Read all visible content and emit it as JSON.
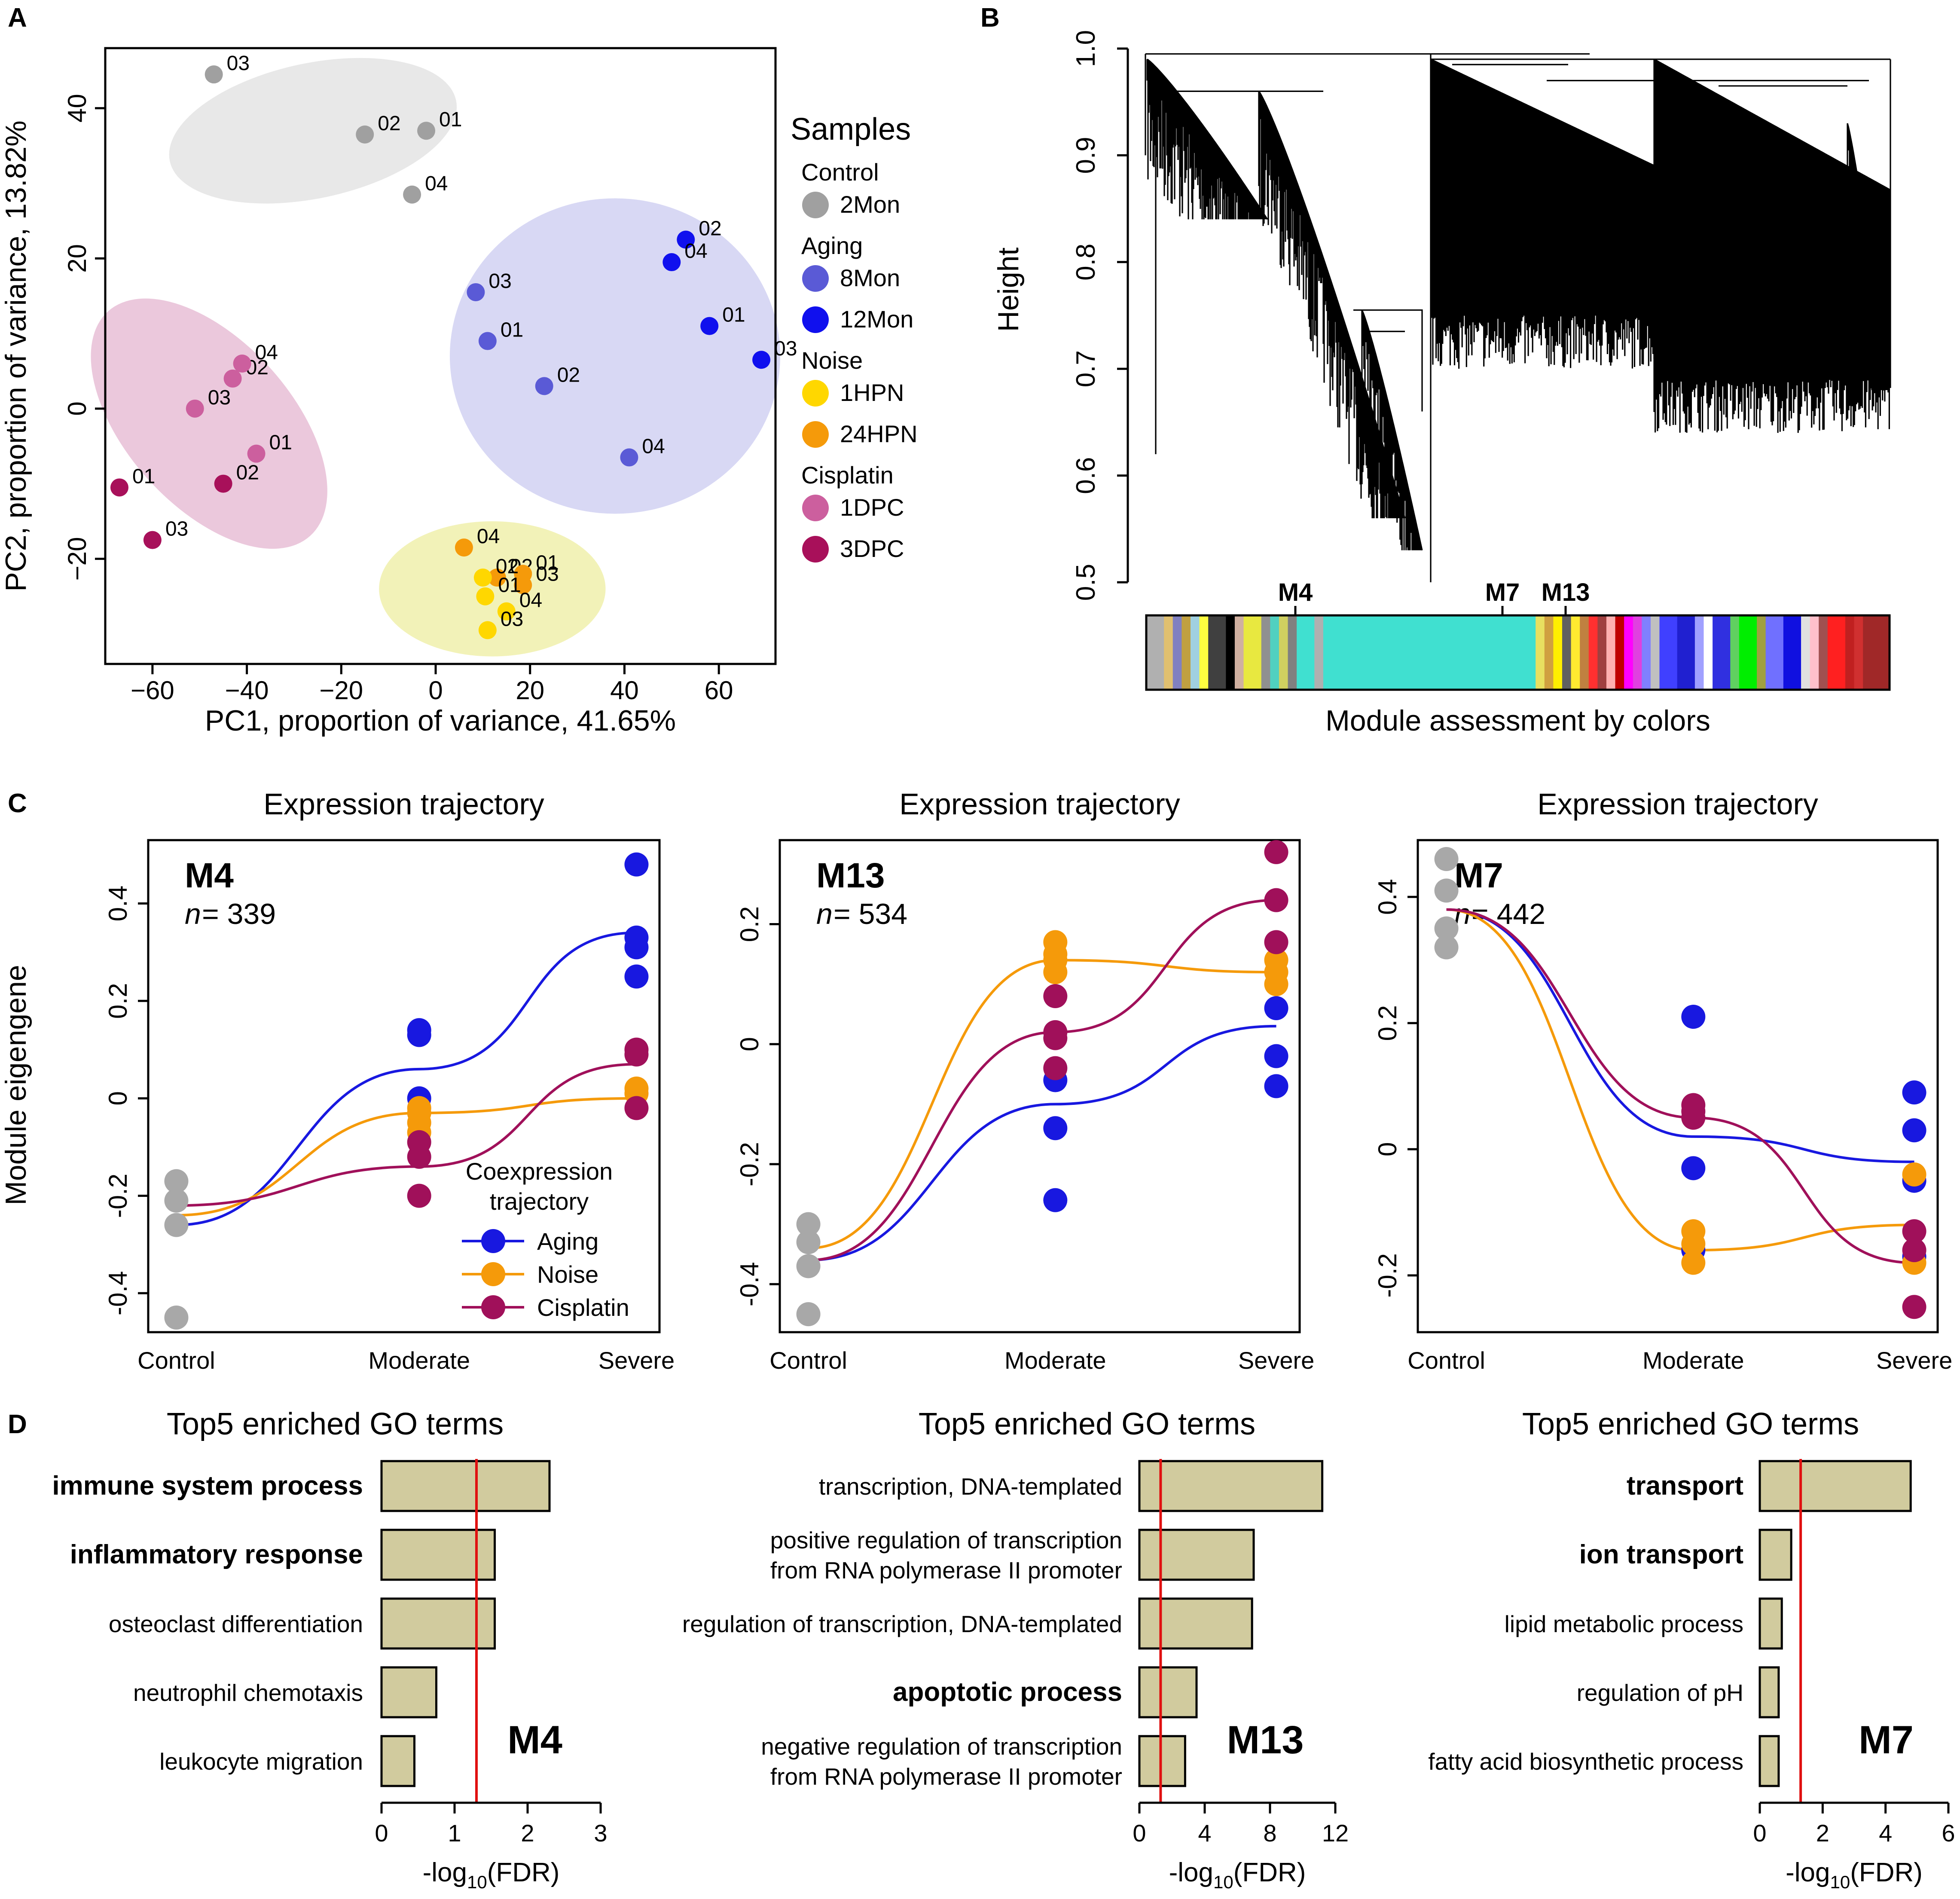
{
  "chart_data": [
    {
      "panel": "A",
      "type": "scatter",
      "xlabel": "PC1, proportion of variance, 41.65%",
      "ylabel": "PC2, proportion of variance, 13.82%",
      "xlim": [
        -70,
        72
      ],
      "ylim": [
        -34,
        48
      ],
      "xticks": [
        -60,
        -40,
        -20,
        0,
        20,
        40,
        60
      ],
      "yticks": [
        -20,
        0,
        20,
        40
      ],
      "legend_title": "Samples",
      "legend": [
        {
          "group": "Control",
          "label": "2Mon",
          "color": "#a0a0a0"
        },
        {
          "group": "Aging",
          "label": "8Mon",
          "color": "#5a5ad6"
        },
        {
          "label": "12Mon",
          "color": "#1010ee"
        },
        {
          "group": "Noise",
          "label": "1HPN",
          "color": "#ffd700"
        },
        {
          "label": "24HPN",
          "color": "#f59a0a"
        },
        {
          "group": "Cisplatin",
          "label": "1DPC",
          "color": "#cc5f9e"
        },
        {
          "label": "3DPC",
          "color": "#a8105a"
        }
      ],
      "ellipses": [
        {
          "name": "control",
          "cx": -26,
          "cy": 37,
          "rx": 31,
          "ry": 9,
          "angle": -12,
          "fill": "#e8e8e8"
        },
        {
          "name": "aging",
          "cx": 38,
          "cy": 7,
          "rx": 35,
          "ry": 21,
          "angle": 0,
          "fill": "#d8d8f4"
        },
        {
          "name": "cisplatin",
          "cx": -48,
          "cy": -2,
          "rx": 32,
          "ry": 11,
          "angle": 48,
          "fill": "#ebc8dc"
        },
        {
          "name": "noise",
          "cx": 12,
          "cy": -24,
          "rx": 24,
          "ry": 9,
          "angle": 0,
          "fill": "#f2f2b8"
        }
      ],
      "points": [
        {
          "x": -47,
          "y": 44.5,
          "label": "03",
          "group": "2Mon"
        },
        {
          "x": -15,
          "y": 36.5,
          "label": "02",
          "group": "2Mon"
        },
        {
          "x": -2,
          "y": 37,
          "label": "01",
          "group": "2Mon"
        },
        {
          "x": -5,
          "y": 28.5,
          "label": "04",
          "group": "2Mon"
        },
        {
          "x": 8.5,
          "y": 15.5,
          "label": "03",
          "group": "8Mon"
        },
        {
          "x": 11,
          "y": 9,
          "label": "01",
          "group": "8Mon"
        },
        {
          "x": 23,
          "y": 3,
          "label": "02",
          "group": "8Mon"
        },
        {
          "x": 41,
          "y": -6.5,
          "label": "04",
          "group": "8Mon"
        },
        {
          "x": 53,
          "y": 22.5,
          "label": "02",
          "group": "12Mon"
        },
        {
          "x": 50,
          "y": 19.5,
          "label": "04",
          "group": "12Mon"
        },
        {
          "x": 58,
          "y": 11,
          "label": "01",
          "group": "12Mon"
        },
        {
          "x": 69,
          "y": 6.5,
          "label": "03",
          "group": "12Mon"
        },
        {
          "x": -51,
          "y": 0,
          "label": "03",
          "group": "1DPC"
        },
        {
          "x": -43,
          "y": 4,
          "label": "02",
          "group": "1DPC"
        },
        {
          "x": -41,
          "y": 6,
          "label": "04",
          "group": "1DPC"
        },
        {
          "x": -38,
          "y": -6,
          "label": "01",
          "group": "1DPC"
        },
        {
          "x": -67,
          "y": -10.5,
          "label": "01",
          "group": "3DPC"
        },
        {
          "x": -45,
          "y": -10,
          "label": "02",
          "group": "3DPC"
        },
        {
          "x": -60,
          "y": -17.5,
          "label": "03",
          "group": "3DPC"
        },
        {
          "x": 6,
          "y": -18.5,
          "label": "04",
          "group": "24HPN"
        },
        {
          "x": 13,
          "y": -22.5,
          "label": "02",
          "group": "24HPN"
        },
        {
          "x": 18.5,
          "y": -22,
          "label": "01",
          "group": "24HPN"
        },
        {
          "x": 18.5,
          "y": -23.5,
          "label": "03",
          "group": "24HPN"
        },
        {
          "x": 10,
          "y": -22.5,
          "label": "02",
          "group": "1HPN"
        },
        {
          "x": 10.5,
          "y": -25,
          "label": "01",
          "group": "1HPN"
        },
        {
          "x": 15,
          "y": -27,
          "label": "04",
          "group": "1HPN"
        },
        {
          "x": 11,
          "y": -29.5,
          "label": "03",
          "group": "1HPN"
        }
      ]
    },
    {
      "panel": "B",
      "type": "dendrogram",
      "ylabel": "Height",
      "ylim": [
        0.5,
        1.0
      ],
      "yticks": [
        0.5,
        0.6,
        0.7,
        0.8,
        0.9,
        1.0
      ],
      "xlabel": "Module assessment by colors",
      "module_markers": [
        "M4",
        "M7",
        "M13"
      ],
      "color_bar": [
        {
          "color": "#b0b0b0",
          "w": 2
        },
        {
          "color": "#e0c070",
          "w": 1
        },
        {
          "color": "#8080c0",
          "w": 1
        },
        {
          "color": "#c0a040",
          "w": 1
        },
        {
          "color": "#a0d0e0",
          "w": 1
        },
        {
          "color": "#ffff40",
          "w": 1
        },
        {
          "color": "#404040",
          "w": 2
        },
        {
          "color": "#000000",
          "w": 1
        },
        {
          "color": "#d0b0a0",
          "w": 1
        },
        {
          "color": "#e8e840",
          "w": 2
        },
        {
          "color": "#909090",
          "w": 1
        },
        {
          "color": "#50d0c0",
          "w": 1
        },
        {
          "color": "#d0d060",
          "w": 1
        },
        {
          "color": "#808080",
          "w": 1
        },
        {
          "color": "#40e0d0",
          "w": 2
        },
        {
          "color": "#b0b0b0",
          "w": 1
        },
        {
          "color": "#40e0d0",
          "w": 24
        },
        {
          "color": "#e8e060",
          "w": 1
        },
        {
          "color": "#d0a040",
          "w": 1
        },
        {
          "color": "#ffee00",
          "w": 1
        },
        {
          "color": "#606060",
          "w": 1
        },
        {
          "color": "#ffea30",
          "w": 1
        },
        {
          "color": "#c08040",
          "w": 1
        },
        {
          "color": "#ff3030",
          "w": 1
        },
        {
          "color": "#a04040",
          "w": 1
        },
        {
          "color": "#ffb0b0",
          "w": 1
        },
        {
          "color": "#c00000",
          "w": 1
        },
        {
          "color": "#ff00ff",
          "w": 1
        },
        {
          "color": "#e040e0",
          "w": 1
        },
        {
          "color": "#8080ff",
          "w": 1
        },
        {
          "color": "#c0c0c0",
          "w": 1
        },
        {
          "color": "#4040ff",
          "w": 2
        },
        {
          "color": "#2020d0",
          "w": 2
        },
        {
          "color": "#a0a0ff",
          "w": 1
        },
        {
          "color": "#ffffff",
          "w": 1
        },
        {
          "color": "#3030e0",
          "w": 2
        },
        {
          "color": "#60d060",
          "w": 1
        },
        {
          "color": "#00ee00",
          "w": 2
        },
        {
          "color": "#a0a040",
          "w": 1
        },
        {
          "color": "#7070ff",
          "w": 2
        },
        {
          "color": "#1010e0",
          "w": 2
        },
        {
          "color": "#e0e0e0",
          "w": 1
        },
        {
          "color": "#ffc0cb",
          "w": 1
        },
        {
          "color": "#a05050",
          "w": 1
        },
        {
          "color": "#ff2020",
          "w": 2
        },
        {
          "color": "#c02020",
          "w": 1
        },
        {
          "color": "#d03030",
          "w": 1
        },
        {
          "color": "#a02828",
          "w": 3
        }
      ]
    },
    {
      "panel": "C",
      "type": "line",
      "title": "Expression trajectory",
      "ylabel": "Module eigengene",
      "categories": [
        "Control",
        "Moderate",
        "Severe"
      ],
      "legend_title": [
        "Coexpression",
        "trajectory"
      ],
      "legend": [
        {
          "name": "Aging",
          "color": "#1818e0"
        },
        {
          "name": "Noise",
          "color": "#f59a0a"
        },
        {
          "name": "Cisplatin",
          "color": "#a0105a"
        }
      ],
      "plots": [
        {
          "module": "M4",
          "n": "339",
          "ylim": [
            -0.48,
            0.53
          ],
          "yticks": [
            -0.4,
            -0.2,
            0,
            0.2,
            0.4
          ],
          "ytick_labels": [
            "-0.4",
            "-0.2",
            "0",
            "0.2",
            "0.4"
          ],
          "control_points": [
            -0.17,
            -0.21,
            -0.26,
            -0.45
          ],
          "series": [
            {
              "name": "Aging",
              "curve": [
                -0.26,
                0.06,
                0.34
              ],
              "points_mod": [
                0.14,
                0.13,
                0.0
              ],
              "points_sev": [
                0.48,
                0.33,
                0.31,
                0.25
              ]
            },
            {
              "name": "Noise",
              "curve": [
                -0.24,
                -0.03,
                0.0
              ],
              "points_mod": [
                -0.02,
                -0.03,
                -0.05,
                -0.07
              ],
              "points_sev": [
                0.02,
                0.01
              ]
            },
            {
              "name": "Cisplatin",
              "curve": [
                -0.22,
                -0.14,
                0.07
              ],
              "points_mod": [
                -0.09,
                -0.12,
                -0.2
              ],
              "points_sev": [
                0.1,
                0.09,
                -0.02
              ]
            }
          ]
        },
        {
          "module": "M13",
          "n": "534",
          "ylim": [
            -0.48,
            0.34
          ],
          "yticks": [
            -0.4,
            -0.2,
            0,
            0.2
          ],
          "ytick_labels": [
            "-0.4",
            "-0.2",
            "0",
            "0.2"
          ],
          "control_points": [
            -0.3,
            -0.33,
            -0.37,
            -0.45
          ],
          "series": [
            {
              "name": "Aging",
              "curve": [
                -0.36,
                -0.1,
                0.03
              ],
              "points_mod": [
                -0.06,
                -0.14,
                -0.26
              ],
              "points_sev": [
                0.06,
                -0.02,
                -0.07
              ]
            },
            {
              "name": "Noise",
              "curve": [
                -0.34,
                0.14,
                0.12
              ],
              "points_mod": [
                0.17,
                0.15,
                0.14,
                0.12
              ],
              "points_sev": [
                0.14,
                0.12,
                0.1
              ]
            },
            {
              "name": "Cisplatin",
              "curve": [
                -0.36,
                0.02,
                0.24
              ],
              "points_mod": [
                0.08,
                0.02,
                0.01,
                -0.04
              ],
              "points_sev": [
                0.32,
                0.24,
                0.17
              ]
            }
          ]
        },
        {
          "module": "M7",
          "n": "442",
          "ylim": [
            -0.29,
            0.49
          ],
          "yticks": [
            -0.2,
            0,
            0.2,
            0.4
          ],
          "ytick_labels": [
            "-0.2",
            "0",
            "0.2",
            "0.4"
          ],
          "control_points": [
            0.46,
            0.41,
            0.35,
            0.32
          ],
          "series": [
            {
              "name": "Aging",
              "curve": [
                0.38,
                0.02,
                -0.02
              ],
              "points_mod": [
                0.21,
                -0.03,
                -0.16
              ],
              "points_sev": [
                0.09,
                0.03,
                -0.05,
                -0.17
              ]
            },
            {
              "name": "Noise",
              "curve": [
                0.38,
                -0.16,
                -0.12
              ],
              "points_mod": [
                -0.13,
                -0.15,
                -0.18
              ],
              "points_sev": [
                -0.04,
                -0.18
              ]
            },
            {
              "name": "Cisplatin",
              "curve": [
                0.38,
                0.05,
                -0.18
              ],
              "points_mod": [
                0.07,
                0.06,
                0.05
              ],
              "points_sev": [
                -0.13,
                -0.16,
                -0.25
              ]
            }
          ]
        }
      ]
    },
    {
      "panel": "D",
      "type": "bar",
      "title": "Top5 enriched GO terms",
      "xlabel_main": "-log",
      "xlabel_sub": "10",
      "xlabel_end": "(FDR)",
      "bar_color": "#d1cb9e",
      "threshold_color": "#e01010",
      "plots": [
        {
          "module": "M4",
          "xlim": [
            0,
            3
          ],
          "xticks": [
            0,
            1,
            2,
            3
          ],
          "threshold": 1.3,
          "terms": [
            {
              "lines": [
                "immune system process"
              ],
              "value": 2.3,
              "bold": true
            },
            {
              "lines": [
                "inflammatory response"
              ],
              "value": 1.55,
              "bold": true
            },
            {
              "lines": [
                "osteoclast differentiation"
              ],
              "value": 1.55,
              "bold": false
            },
            {
              "lines": [
                "neutrophil chemotaxis"
              ],
              "value": 0.75,
              "bold": false
            },
            {
              "lines": [
                "leukocyte migration"
              ],
              "value": 0.45,
              "bold": false
            }
          ]
        },
        {
          "module": "M13",
          "xlim": [
            0,
            12
          ],
          "xticks": [
            0,
            4,
            8,
            12
          ],
          "threshold": 1.3,
          "terms": [
            {
              "lines": [
                "transcription, DNA-templated"
              ],
              "value": 11.2,
              "bold": false
            },
            {
              "lines": [
                "positive regulation of transcription",
                "from RNA polymerase II promoter"
              ],
              "value": 7.0,
              "bold": false
            },
            {
              "lines": [
                "regulation of transcription, DNA-templated"
              ],
              "value": 6.9,
              "bold": false
            },
            {
              "lines": [
                "apoptotic process"
              ],
              "value": 3.5,
              "bold": true
            },
            {
              "lines": [
                "negative regulation of transcription",
                "from RNA polymerase II promoter"
              ],
              "value": 2.8,
              "bold": false
            }
          ]
        },
        {
          "module": "M7",
          "xlim": [
            0,
            6
          ],
          "xticks": [
            0,
            2,
            4,
            6
          ],
          "threshold": 1.3,
          "terms": [
            {
              "lines": [
                "transport"
              ],
              "value": 4.8,
              "bold": true
            },
            {
              "lines": [
                "ion transport"
              ],
              "value": 1.0,
              "bold": true
            },
            {
              "lines": [
                "lipid metabolic process"
              ],
              "value": 0.7,
              "bold": false
            },
            {
              "lines": [
                "regulation of pH"
              ],
              "value": 0.6,
              "bold": false
            },
            {
              "lines": [
                "fatty acid biosynthetic process"
              ],
              "value": 0.6,
              "bold": false
            }
          ]
        }
      ]
    }
  ]
}
